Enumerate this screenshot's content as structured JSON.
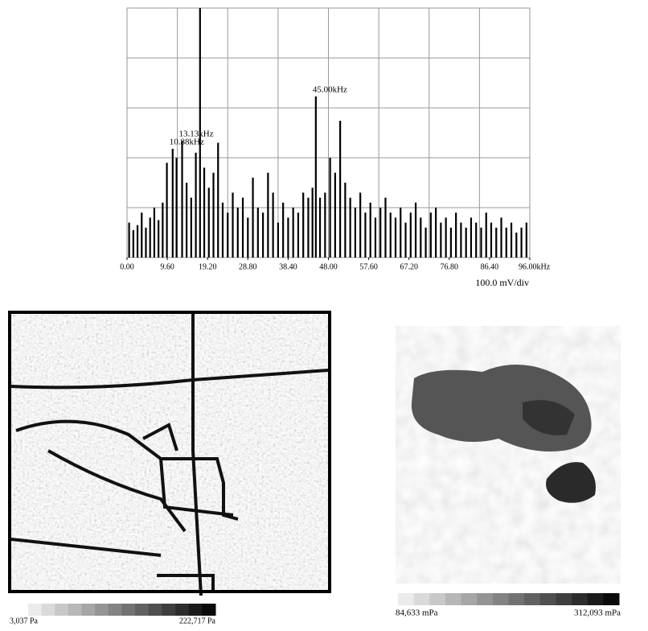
{
  "chart_data": {
    "type": "bar",
    "x_unit_label": "100.0 mV/div",
    "xlim": [
      0,
      96
    ],
    "ylim": [
      0,
      500
    ],
    "xticks": [
      {
        "value": 0,
        "label": "0.00"
      },
      {
        "value": 9.6,
        "label": "9.60"
      },
      {
        "value": 19.2,
        "label": "19.20"
      },
      {
        "value": 28.8,
        "label": "28.80"
      },
      {
        "value": 38.4,
        "label": "38.40"
      },
      {
        "value": 48,
        "label": "48.00"
      },
      {
        "value": 57.6,
        "label": "57.60"
      },
      {
        "value": 67.2,
        "label": "67.20"
      },
      {
        "value": 76.8,
        "label": "76.80"
      },
      {
        "value": 86.4,
        "label": "86.40"
      },
      {
        "value": 96,
        "label": "96.00kHz"
      }
    ],
    "xgrid": [
      12,
      24,
      36,
      48,
      60,
      72,
      84
    ],
    "ygrid": [
      100,
      200,
      300,
      400
    ],
    "grid": true,
    "color": "#000000",
    "x": [
      0.5,
      1.5,
      2.5,
      3.5,
      4.5,
      5.5,
      6.5,
      7.5,
      8.5,
      9.5,
      10.88,
      11.8,
      13.13,
      14.2,
      15.3,
      16.4,
      17.4,
      18.4,
      19.5,
      20.6,
      21.7,
      22.8,
      24,
      25.2,
      26.4,
      27.6,
      28.8,
      30,
      31.2,
      32.4,
      33.6,
      34.8,
      36,
      37.2,
      38.4,
      39.6,
      40.8,
      42,
      43.2,
      44.2,
      45,
      46,
      47.2,
      48.4,
      49.6,
      50.8,
      52,
      53.2,
      54.4,
      55.6,
      56.8,
      58,
      59.2,
      60.4,
      61.6,
      62.8,
      64,
      65.2,
      66.4,
      67.6,
      68.8,
      70,
      71.2,
      72.4,
      73.6,
      74.8,
      76,
      77.2,
      78.4,
      79.6,
      80.8,
      82,
      83.2,
      84.4,
      85.6,
      86.8,
      88,
      89.2,
      90.4,
      91.6,
      92.8,
      94,
      95.2
    ],
    "values": [
      70,
      55,
      65,
      90,
      60,
      80,
      100,
      75,
      110,
      190,
      218,
      200,
      234,
      150,
      120,
      210,
      500,
      180,
      140,
      170,
      230,
      110,
      90,
      130,
      100,
      120,
      80,
      160,
      100,
      90,
      170,
      130,
      70,
      110,
      80,
      100,
      90,
      130,
      120,
      140,
      323,
      120,
      130,
      200,
      170,
      274,
      150,
      120,
      100,
      130,
      90,
      110,
      80,
      100,
      120,
      90,
      80,
      100,
      70,
      90,
      110,
      80,
      60,
      90,
      100,
      70,
      80,
      60,
      90,
      70,
      60,
      80,
      70,
      60,
      90,
      70,
      60,
      80,
      60,
      70,
      50,
      60,
      70
    ],
    "annotations": [
      {
        "text": "45.00kHz",
        "x": 45
      },
      {
        "text": "13.13kHz",
        "x": 13.13
      },
      {
        "text": "10.88kHz",
        "x": 10.88
      }
    ]
  },
  "panels": [
    {
      "min_label": "3,037 Pa",
      "max_label": "222,717 Pa"
    },
    {
      "min_label": "84,633 mPa",
      "max_label": "312,093 mPa"
    }
  ]
}
